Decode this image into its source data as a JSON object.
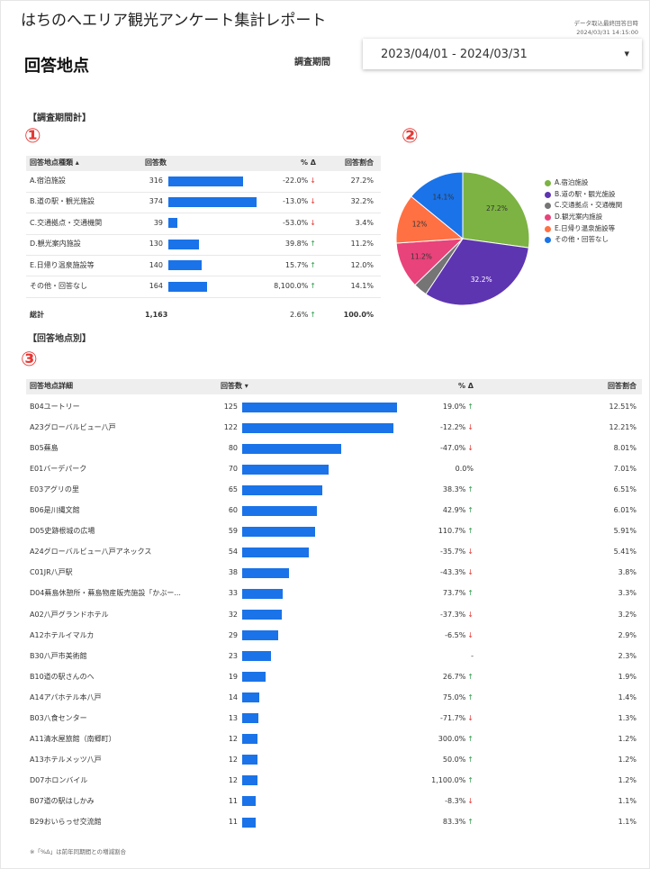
{
  "header": {
    "title": "はちのへエリア観光アンケート集計レポート",
    "last_updated_label": "データ取込最終回答日時",
    "last_updated": "2024/03/31 14:15:00",
    "page_title": "回答地点",
    "period_label": "調査期間",
    "period": "2023/04/01 - 2024/03/31",
    "dropdown_icon": "▾"
  },
  "summary": {
    "heading": "【調査期間計】",
    "marker": "①",
    "columns": [
      "回答地点種類 ▴",
      "回答数",
      "% Δ",
      "回答割合"
    ],
    "rows": [
      {
        "name": "A.宿泊施設",
        "count": 316,
        "delta": "-22.0%",
        "arrow": "↓",
        "share": "27.2%"
      },
      {
        "name": "B.道の駅・観光施設",
        "count": 374,
        "delta": "-13.0%",
        "arrow": "↓",
        "share": "32.2%"
      },
      {
        "name": "C.交通拠点・交通機関",
        "count": 39,
        "delta": "-53.0%",
        "arrow": "↓",
        "share": "3.4%"
      },
      {
        "name": "D.観光案内施設",
        "count": 130,
        "delta": "39.8%",
        "arrow": "↑",
        "share": "11.2%"
      },
      {
        "name": "E.日帰り温泉施設等",
        "count": 140,
        "delta": "15.7%",
        "arrow": "↑",
        "share": "12.0%"
      },
      {
        "name": "その他・回答なし",
        "count": 164,
        "delta": "8,100.0%",
        "arrow": "↑",
        "share": "14.1%"
      }
    ],
    "total": {
      "name": "総計",
      "count": "1,163",
      "delta": "2.6%",
      "arrow": "↑",
      "share": "100.0%"
    }
  },
  "chart_data": {
    "type": "pie",
    "marker": "②",
    "categories": [
      "A.宿泊施設",
      "B.道の駅・観光施設",
      "C.交通拠点・交通機関",
      "D.観光案内施設",
      "E.日帰り温泉施設等",
      "その他・回答なし"
    ],
    "values": [
      27.2,
      32.2,
      3.4,
      11.2,
      12.0,
      14.1
    ],
    "value_labels": [
      "27.2%",
      "32.2%",
      null,
      "11.2%",
      "12%",
      "14.1%"
    ],
    "colors": [
      "#7cb342",
      "#5e35b1",
      "#757575",
      "#e8437a",
      "#ff7043",
      "#1a73e8"
    ],
    "legend": "right"
  },
  "detail": {
    "heading": "【回答地点別】",
    "marker": "③",
    "columns": [
      "回答地点詳細",
      "回答数 ▾",
      "% Δ",
      "回答割合"
    ],
    "rows": [
      {
        "name": "B04ユートリー",
        "count": 125,
        "delta": "19.0%",
        "arrow": "↑",
        "share": "12.51%"
      },
      {
        "name": "A23グローバルビュー八戸",
        "count": 122,
        "delta": "-12.2%",
        "arrow": "↓",
        "share": "12.21%"
      },
      {
        "name": "B05蕪島",
        "count": 80,
        "delta": "-47.0%",
        "arrow": "↓",
        "share": "8.01%"
      },
      {
        "name": "E01バーデパーク",
        "count": 70,
        "delta": "0.0%",
        "share": "7.01%"
      },
      {
        "name": "E03アグリの里",
        "count": 65,
        "delta": "38.3%",
        "arrow": "↑",
        "share": "6.51%"
      },
      {
        "name": "B06是川縄文館",
        "count": 60,
        "delta": "42.9%",
        "arrow": "↑",
        "share": "6.01%"
      },
      {
        "name": "D05史跡根城の広場",
        "count": 59,
        "delta": "110.7%",
        "arrow": "↑",
        "share": "5.91%"
      },
      {
        "name": "A24グローバルビュー八戸アネックス",
        "count": 54,
        "delta": "-35.7%",
        "arrow": "↓",
        "share": "5.41%"
      },
      {
        "name": "C01JR八戸駅",
        "count": 38,
        "delta": "-43.3%",
        "arrow": "↓",
        "share": "3.8%"
      },
      {
        "name": "D04蕪島休憩所・蕪島物産販売施設「かぶー...",
        "count": 33,
        "delta": "73.7%",
        "arrow": "↑",
        "share": "3.3%"
      },
      {
        "name": "A02八戸グランドホテル",
        "count": 32,
        "delta": "-37.3%",
        "arrow": "↓",
        "share": "3.2%"
      },
      {
        "name": "A12ホテルイマルカ",
        "count": 29,
        "delta": "-6.5%",
        "arrow": "↓",
        "share": "2.9%"
      },
      {
        "name": "B30八戸市美術館",
        "count": 23,
        "delta": "-",
        "share": "2.3%"
      },
      {
        "name": "B10道の駅さんのへ",
        "count": 19,
        "delta": "26.7%",
        "arrow": "↑",
        "share": "1.9%"
      },
      {
        "name": "A14アパホテル本八戸",
        "count": 14,
        "delta": "75.0%",
        "arrow": "↑",
        "share": "1.4%"
      },
      {
        "name": "B03八食センター",
        "count": 13,
        "delta": "-71.7%",
        "arrow": "↓",
        "share": "1.3%"
      },
      {
        "name": "A11清水屋旅館（南郷町）",
        "count": 12,
        "delta": "300.0%",
        "arrow": "↑",
        "share": "1.2%"
      },
      {
        "name": "A13ホテルメッツ八戸",
        "count": 12,
        "delta": "50.0%",
        "arrow": "↑",
        "share": "1.2%"
      },
      {
        "name": "D07ホロンバイル",
        "count": 12,
        "delta": "1,100.0%",
        "arrow": "↑",
        "share": "1.2%"
      },
      {
        "name": "B07道の駅はしかみ",
        "count": 11,
        "delta": "-8.3%",
        "arrow": "↓",
        "share": "1.1%"
      },
      {
        "name": "B29おいらっせ交流館",
        "count": 11,
        "delta": "83.3%",
        "arrow": "↑",
        "share": "1.1%"
      }
    ]
  },
  "footnote": "※「%Δ」は前年同期間との増減割合"
}
